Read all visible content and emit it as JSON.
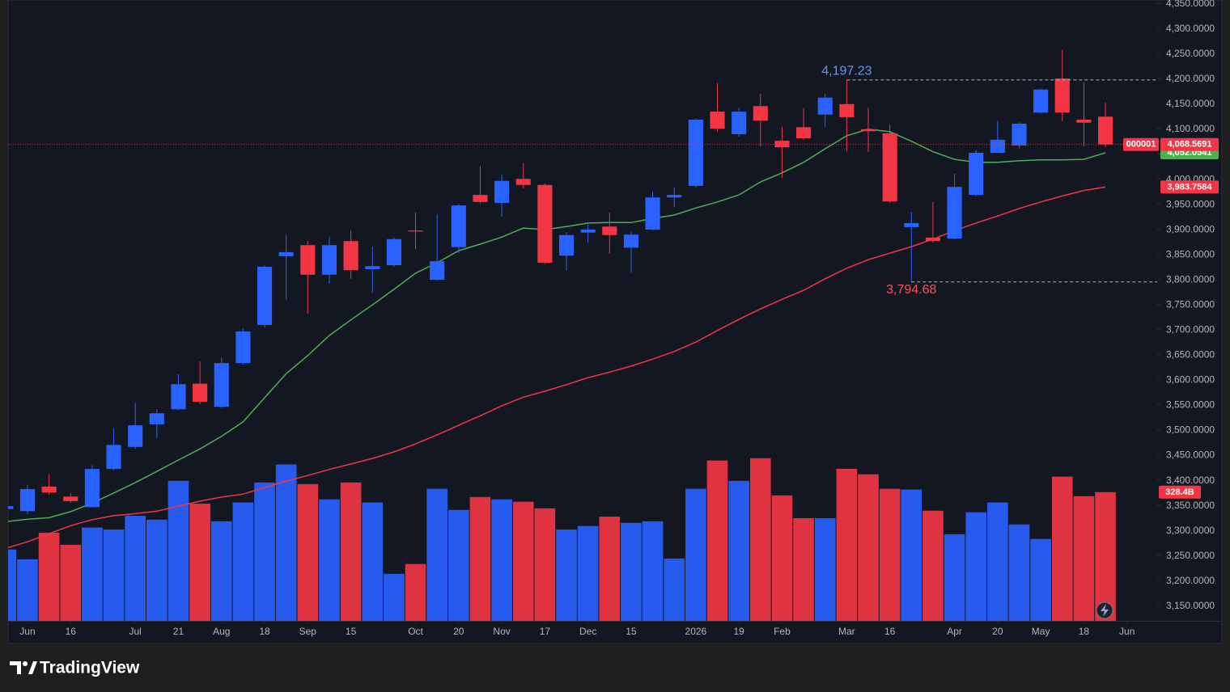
{
  "chart_data": {
    "type": "candlestick",
    "symbol": "000001",
    "up_color": "#2962ff",
    "down_color": "#f23645",
    "x": [
      -1,
      0,
      1,
      2,
      3,
      4,
      5,
      6,
      7,
      8,
      9,
      10,
      11,
      12,
      13,
      14,
      15,
      16,
      17,
      18,
      19,
      20,
      21,
      22,
      23,
      24,
      25,
      26,
      27,
      28,
      29,
      30,
      31,
      32,
      33,
      34,
      35,
      36,
      37,
      38,
      39,
      40,
      41,
      42,
      43,
      44,
      45,
      46,
      47,
      48,
      49,
      50
    ],
    "open": [
      3342,
      3338,
      3387,
      3367,
      3346,
      3422,
      3466,
      3511,
      3541,
      3592,
      3546,
      3633,
      3709,
      3846,
      3868,
      3809,
      3876,
      3820,
      3828,
      3897,
      3799,
      3864,
      3968,
      3952,
      4000,
      3988,
      3847,
      3893,
      3905,
      3863,
      3899,
      3963,
      3986,
      4134,
      4089,
      4145,
      4076,
      4103,
      4128,
      4149,
      4099,
      4091,
      3904,
      3883,
      3881,
      3968,
      4052,
      4066.5,
      4132,
      4200,
      4118,
      4124
    ],
    "high": [
      3352,
      3390,
      3412,
      3374,
      3430,
      3503,
      3554,
      3541,
      3611,
      3636,
      3644,
      3702,
      3827,
      3889,
      3876,
      3885,
      3897,
      3865,
      3883,
      3933,
      3930,
      3950,
      4025,
      4009,
      4031,
      3991,
      3893,
      3910,
      3933,
      3895,
      3975,
      3983,
      4120,
      4191,
      4142,
      4170,
      4104,
      4141,
      4170,
      4197.23,
      4142,
      4108,
      3934,
      3954,
      4010,
      4058,
      4115,
      4113,
      4180,
      4257,
      4192,
      4152
    ],
    "low": [
      3338,
      3332,
      3371,
      3355,
      3345,
      3419,
      3462,
      3483,
      3539,
      3551,
      3543,
      3630,
      3704,
      3760,
      3731,
      3791,
      3801,
      3773,
      3825,
      3860,
      3797,
      3852,
      3951,
      3925,
      3981,
      3830,
      3817,
      3873,
      3851,
      3814,
      3897,
      3944,
      3983,
      4094,
      4084,
      4065,
      4002,
      4078,
      4104,
      4055,
      4054,
      3952,
      3794.68,
      3873,
      3879,
      3965,
      4052,
      4061,
      4130,
      4115,
      4065,
      4063
    ],
    "close": [
      3348,
      3382,
      3375,
      3358,
      3422,
      3470,
      3509,
      3533,
      3591,
      3556,
      3633,
      3696,
      3825,
      3854,
      3809,
      3868,
      3818,
      3826,
      3880,
      3895,
      3836,
      3947,
      3954,
      3996,
      3988,
      3833,
      3888,
      3899,
      3888,
      3889,
      3963,
      3968,
      4118,
      4100,
      4134,
      4116,
      4063,
      4081,
      4162,
      4123,
      4095,
      3955,
      3912,
      3876,
      3984,
      4052,
      4078,
      4110,
      4178,
      4132,
      4112,
      4068.5691
    ],
    "close_label": "4,068.5691",
    "volume": [
      182,
      157,
      225,
      194,
      238,
      233,
      268,
      258,
      357,
      299,
      254,
      302,
      353,
      399,
      349,
      310,
      353,
      302,
      120,
      145,
      337,
      283,
      316,
      310,
      304,
      287,
      233,
      242,
      266,
      250,
      254,
      159,
      337,
      409,
      357,
      415,
      320,
      262,
      262,
      388,
      374,
      337,
      335,
      281,
      221,
      277,
      302,
      246,
      209,
      368,
      318,
      328.4
    ],
    "volume_label": "328.4B",
    "series": [
      {
        "color": "#4caf50",
        "values": [
          3317,
          3322,
          3325,
          3337,
          3354,
          3374,
          3395,
          3417,
          3440,
          3462,
          3487,
          3516,
          3564,
          3612,
          3648,
          3688,
          3719,
          3749,
          3780,
          3812,
          3833,
          3857,
          3870,
          3884,
          3902,
          3899,
          3905,
          3912,
          3913,
          3913,
          3921,
          3928,
          3942,
          3954,
          3968,
          3994,
          4012,
          4033,
          4060,
          4086,
          4099,
          4094,
          4075,
          4054,
          4039,
          4033,
          4033,
          4036,
          4038,
          4038,
          4039,
          4052.0541
        ],
        "value_label": "4,052.0541"
      },
      {
        "color": "#f23645",
        "values": [
          3264,
          3277,
          3293,
          3309,
          3321,
          3329,
          3333,
          3338,
          3348,
          3358,
          3366,
          3372,
          3385,
          3398,
          3409,
          3421,
          3432,
          3443,
          3456,
          3472,
          3490,
          3509,
          3528,
          3548,
          3565,
          3577,
          3590,
          3604,
          3615,
          3627,
          3641,
          3656,
          3675,
          3698,
          3720,
          3741,
          3760,
          3778,
          3801,
          3822,
          3839,
          3852,
          3865,
          3880,
          3897,
          3912,
          3926,
          3941,
          3954,
          3966,
          3977,
          3983.7584
        ],
        "value_label": "3,983.7584"
      }
    ],
    "markers": [
      {
        "label": "4,197.23",
        "at": "high",
        "x": 38,
        "color": "#5b9cf6"
      },
      {
        "label": "3,794.68",
        "at": "low",
        "x": 41,
        "color": "#f7525f"
      }
    ],
    "xlim": [
      -0.9,
      52.4
    ],
    "xticks": [
      {
        "value": 0,
        "label": "Jun"
      },
      {
        "value": 2,
        "label": "16"
      },
      {
        "value": 5,
        "label": "Jul"
      },
      {
        "value": 7,
        "label": "21"
      },
      {
        "value": 9,
        "label": "Aug"
      },
      {
        "value": 11,
        "label": "18"
      },
      {
        "value": 13,
        "label": "Sep"
      },
      {
        "value": 15,
        "label": "15"
      },
      {
        "value": 18,
        "label": "Oct"
      },
      {
        "value": 20,
        "label": "20"
      },
      {
        "value": 22,
        "label": "Nov"
      },
      {
        "value": 24,
        "label": "17"
      },
      {
        "value": 26,
        "label": "Dec"
      },
      {
        "value": 28,
        "label": "15"
      },
      {
        "value": 31,
        "label": "2026"
      },
      {
        "value": 33,
        "label": "19"
      },
      {
        "value": 35,
        "label": "Feb"
      },
      {
        "value": 38,
        "label": "Mar"
      },
      {
        "value": 40,
        "label": "16"
      },
      {
        "value": 43,
        "label": "Apr"
      },
      {
        "value": 45,
        "label": "20"
      },
      {
        "value": 47,
        "label": "May"
      },
      {
        "value": 49,
        "label": "18"
      },
      {
        "value": 51,
        "label": "Jun"
      }
    ],
    "ylim": [
      3119.4,
      4356.4
    ],
    "yticks": [
      {
        "value": 4350,
        "label": "4,350.0000"
      },
      {
        "value": 4300,
        "label": "4,300.0000"
      },
      {
        "value": 4250,
        "label": "4,250.0000"
      },
      {
        "value": 4200,
        "label": "4,200.0000"
      },
      {
        "value": 4150,
        "label": "4,150.0000"
      },
      {
        "value": 4100,
        "label": "4,100.0000"
      },
      {
        "value": 4050,
        "label": "4,050.0000"
      },
      {
        "value": 4000,
        "label": "4,000.0000"
      },
      {
        "value": 3950,
        "label": "3,950.0000"
      },
      {
        "value": 3900,
        "label": "3,900.0000"
      },
      {
        "value": 3850,
        "label": "3,850.0000"
      },
      {
        "value": 3800,
        "label": "3,800.0000"
      },
      {
        "value": 3750,
        "label": "3,750.0000"
      },
      {
        "value": 3700,
        "label": "3,700.0000"
      },
      {
        "value": 3650,
        "label": "3,650.0000"
      },
      {
        "value": 3600,
        "label": "3,600.0000"
      },
      {
        "value": 3550,
        "label": "3,550.0000"
      },
      {
        "value": 3500,
        "label": "3,500.0000"
      },
      {
        "value": 3450,
        "label": "3,450.0000"
      },
      {
        "value": 3400,
        "label": "3,400.0000"
      },
      {
        "value": 3350,
        "label": "3,350.0000"
      },
      {
        "value": 3300,
        "label": "3,300.0000"
      },
      {
        "value": 3250,
        "label": "3,250.0000"
      },
      {
        "value": 3200,
        "label": "3,200.0000"
      },
      {
        "value": 3150,
        "label": "3,150.0000"
      }
    ],
    "grid": false
  },
  "footer": {
    "brand": "TradingView"
  }
}
